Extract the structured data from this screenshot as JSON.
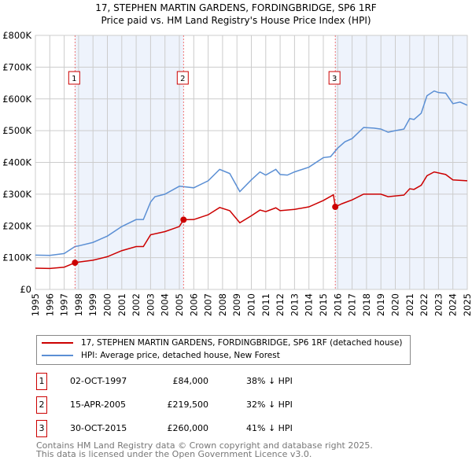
{
  "title": "17, STEPHEN MARTIN GARDENS, FORDINGBRIDGE, SP6 1RF",
  "subtitle": "Price paid vs. HM Land Registry's House Price Index (HPI)",
  "chart_data": {
    "type": "line",
    "xlim": [
      1995,
      2025
    ],
    "ylim": [
      0,
      800000
    ],
    "yticks": [
      {
        "v": 0,
        "label": "£0"
      },
      {
        "v": 100000,
        "label": "£100K"
      },
      {
        "v": 200000,
        "label": "£200K"
      },
      {
        "v": 300000,
        "label": "£300K"
      },
      {
        "v": 400000,
        "label": "£400K"
      },
      {
        "v": 500000,
        "label": "£500K"
      },
      {
        "v": 600000,
        "label": "£600K"
      },
      {
        "v": 700000,
        "label": "£700K"
      },
      {
        "v": 800000,
        "label": "£800K"
      }
    ],
    "xticks": [
      "1995",
      "1996",
      "1997",
      "1998",
      "1999",
      "2000",
      "2001",
      "2002",
      "2003",
      "2004",
      "2005",
      "2006",
      "2007",
      "2008",
      "2009",
      "2010",
      "2011",
      "2012",
      "2013",
      "2014",
      "2015",
      "2016",
      "2017",
      "2018",
      "2019",
      "2020",
      "2021",
      "2022",
      "2023",
      "2024",
      "2025"
    ],
    "series": [
      {
        "name": "17, STEPHEN MARTIN GARDENS, FORDINGBRIDGE, SP6 1RF (detached house)",
        "color": "#cc0000",
        "x": [
          1995,
          1996,
          1997,
          1997.75,
          1998,
          1999,
          2000,
          2001,
          2002,
          2002.5,
          2003,
          2004,
          2005,
          2005.29,
          2006,
          2007,
          2007.8,
          2008.5,
          2009.2,
          2010,
          2010.6,
          2011,
          2011.7,
          2012,
          2013,
          2014,
          2015,
          2015.7,
          2015.83,
          2016.3,
          2017,
          2017.8,
          2019,
          2019.5,
          2020.6,
          2021,
          2021.3,
          2021.8,
          2022.2,
          2022.7,
          2023.5,
          2024,
          2025
        ],
        "y": [
          67000,
          66000,
          70000,
          84000,
          86000,
          92000,
          103000,
          122000,
          135000,
          135000,
          172000,
          182000,
          198000,
          219500,
          220000,
          235000,
          258000,
          248000,
          210000,
          232000,
          250000,
          245000,
          257000,
          248000,
          252000,
          260000,
          280000,
          298000,
          260000,
          270000,
          282000,
          300000,
          300000,
          292000,
          297000,
          317000,
          315000,
          328000,
          358000,
          370000,
          362000,
          345000,
          342000
        ]
      },
      {
        "name": "HPI: Average price, detached house, New Forest",
        "color": "#5b8fd4",
        "x": [
          1995,
          1996,
          1997,
          1997.75,
          1998,
          1999,
          2000,
          2001,
          2002,
          2002.5,
          2003,
          2003.3,
          2004,
          2005,
          2006,
          2007,
          2007.8,
          2008.5,
          2009.2,
          2010,
          2010.6,
          2011,
          2011.7,
          2012,
          2012.5,
          2013,
          2014,
          2015,
          2015.5,
          2016,
          2016.5,
          2017,
          2017.8,
          2018.5,
          2019,
          2019.5,
          2020,
          2020.6,
          2021,
          2021.3,
          2021.8,
          2022.2,
          2022.7,
          2023,
          2023.5,
          2024,
          2024.5,
          2025
        ],
        "y": [
          108000,
          107000,
          113000,
          135000,
          137000,
          148000,
          168000,
          198000,
          220000,
          220000,
          275000,
          292000,
          300000,
          325000,
          320000,
          342000,
          378000,
          365000,
          308000,
          345000,
          370000,
          360000,
          378000,
          362000,
          360000,
          370000,
          385000,
          415000,
          418000,
          445000,
          465000,
          475000,
          510000,
          508000,
          505000,
          495000,
          500000,
          505000,
          538000,
          535000,
          555000,
          610000,
          625000,
          620000,
          618000,
          585000,
          590000,
          580000
        ]
      }
    ],
    "sales": [
      {
        "num": "1",
        "x": 1997.75,
        "price_value": 84000,
        "date": "02-OCT-1997",
        "price": "£84,000",
        "hpi": "38% ↓ HPI"
      },
      {
        "num": "2",
        "x": 2005.29,
        "price_value": 219500,
        "date": "15-APR-2005",
        "price": "£219,500",
        "hpi": "32% ↓ HPI"
      },
      {
        "num": "3",
        "x": 2015.83,
        "price_value": 260000,
        "date": "30-OCT-2015",
        "price": "£260,000",
        "hpi": "41% ↓ HPI"
      }
    ]
  },
  "footer": [
    "Contains HM Land Registry data © Crown copyright and database right 2025.",
    "This data is licensed under the Open Government Licence v3.0."
  ]
}
